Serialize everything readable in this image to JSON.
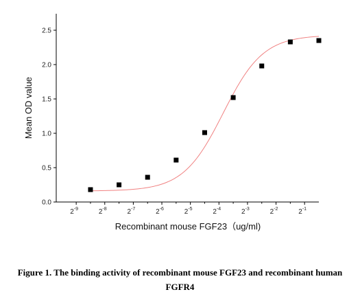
{
  "chart_data": {
    "type": "scatter",
    "xlabel": "Recombinant mouse FGF23（ug/ml)",
    "ylabel": "Mean OD value",
    "x_scale": "log2",
    "xlim_exponent": [
      -9.7,
      -0.5
    ],
    "ylim": [
      0,
      2.5
    ],
    "x_ticks": [
      {
        "base": "2",
        "exp": "-9",
        "value": -9
      },
      {
        "base": "2",
        "exp": "-8",
        "value": -8
      },
      {
        "base": "2",
        "exp": "-7",
        "value": -7
      },
      {
        "base": "2",
        "exp": "-6",
        "value": -6
      },
      {
        "base": "2",
        "exp": "-5",
        "value": -5
      },
      {
        "base": "2",
        "exp": "-4",
        "value": -4
      },
      {
        "base": "2",
        "exp": "-3",
        "value": -3
      },
      {
        "base": "2",
        "exp": "-2",
        "value": -2
      },
      {
        "base": "2",
        "exp": "-1",
        "value": -1
      }
    ],
    "y_ticks": [
      "0.0",
      "0.5",
      "1.0",
      "1.5",
      "2.0",
      "2.5"
    ],
    "series": [
      {
        "type": "scatter",
        "x": [
          -8.5,
          -7.5,
          -6.5,
          -5.5,
          -4.5,
          -3.5,
          -2.5,
          -1.5,
          -0.5
        ],
        "y": [
          0.18,
          0.25,
          0.36,
          0.61,
          1.01,
          1.52,
          1.98,
          2.33,
          2.35
        ],
        "marker_color": "#000000"
      },
      {
        "type": "line",
        "fit": "four-parameter logistic",
        "bottom": 0.16,
        "top": 2.43,
        "ec50_log2": -3.85,
        "slope": 0.7,
        "line_color": "#f08080"
      }
    ]
  },
  "caption": {
    "line1": "Figure 1. The binding activity of recombinant mouse FGF23 and recombinant human",
    "line2": "FGFR4"
  }
}
